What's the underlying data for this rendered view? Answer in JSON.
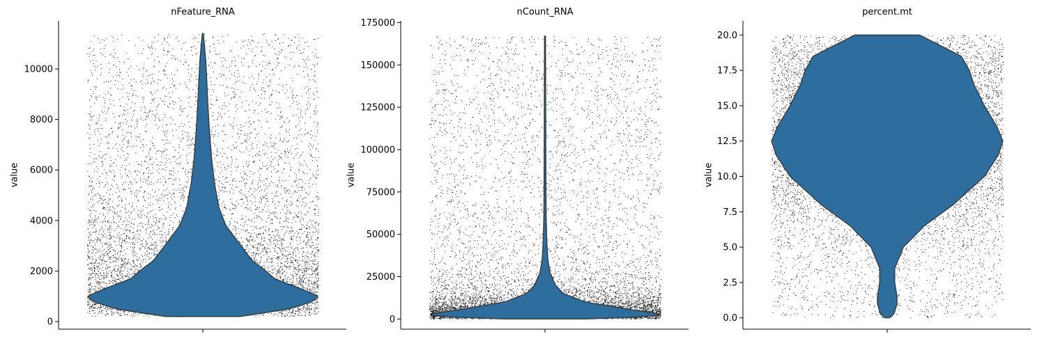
{
  "chart_data": [
    {
      "type": "violin",
      "title": "nFeature_RNA",
      "ylabel": "value",
      "ylim": [
        -300,
        11900
      ],
      "yticks": [
        0,
        2000,
        4000,
        6000,
        8000,
        10000
      ],
      "ytick_labels": [
        "0",
        "2000",
        "4000",
        "6000",
        "8000",
        "10000"
      ],
      "range": [
        200,
        11400
      ],
      "density": [
        [
          200,
          0.32
        ],
        [
          500,
          0.75
        ],
        [
          800,
          0.95
        ],
        [
          1000,
          1.0
        ],
        [
          1300,
          0.85
        ],
        [
          1700,
          0.62
        ],
        [
          2100,
          0.52
        ],
        [
          2400,
          0.43
        ],
        [
          3000,
          0.33
        ],
        [
          3800,
          0.2
        ],
        [
          4500,
          0.14
        ],
        [
          5500,
          0.1
        ],
        [
          6500,
          0.075
        ],
        [
          7500,
          0.058
        ],
        [
          8500,
          0.045
        ],
        [
          9500,
          0.035
        ],
        [
          10300,
          0.026
        ],
        [
          10900,
          0.015
        ],
        [
          11400,
          0.004
        ]
      ],
      "violin_color": "#2e6e9e",
      "point_color": "#000000"
    },
    {
      "type": "violin",
      "title": "nCount_RNA",
      "ylabel": "value",
      "ylim": [
        -6000,
        176000
      ],
      "yticks": [
        0,
        25000,
        50000,
        75000,
        100000,
        125000,
        150000,
        175000
      ],
      "ytick_labels": [
        "0",
        "25000",
        "50000",
        "75000",
        "100000",
        "125000",
        "150000",
        "175000"
      ],
      "range": [
        0,
        167000
      ],
      "density": [
        [
          0,
          0.35
        ],
        [
          1500,
          0.95
        ],
        [
          3000,
          1.0
        ],
        [
          6000,
          0.7
        ],
        [
          10000,
          0.35
        ],
        [
          15000,
          0.16
        ],
        [
          20000,
          0.09
        ],
        [
          27000,
          0.045
        ],
        [
          35000,
          0.025
        ],
        [
          45000,
          0.016
        ],
        [
          60000,
          0.01
        ],
        [
          80000,
          0.008
        ],
        [
          100000,
          0.007
        ],
        [
          125000,
          0.006
        ],
        [
          150000,
          0.005
        ],
        [
          167000,
          0.004
        ]
      ],
      "violin_color": "#2e6e9e",
      "point_color": "#000000"
    },
    {
      "type": "violin",
      "title": "percent.mt",
      "ylabel": "value",
      "ylim": [
        -0.8,
        21
      ],
      "yticks": [
        0.0,
        2.5,
        5.0,
        7.5,
        10.0,
        12.5,
        15.0,
        17.5,
        20.0
      ],
      "ytick_labels": [
        "0.0",
        "2.5",
        "5.0",
        "7.5",
        "10.0",
        "12.5",
        "15.0",
        "17.5",
        "20.0"
      ],
      "range": [
        0,
        20
      ],
      "density": [
        [
          0,
          0.02
        ],
        [
          0.3,
          0.06
        ],
        [
          1.0,
          0.085
        ],
        [
          1.5,
          0.085
        ],
        [
          2.5,
          0.065
        ],
        [
          3.5,
          0.065
        ],
        [
          5.0,
          0.14
        ],
        [
          6.5,
          0.32
        ],
        [
          8.0,
          0.57
        ],
        [
          10.0,
          0.84
        ],
        [
          11.5,
          0.96
        ],
        [
          12.5,
          1.0
        ],
        [
          13.5,
          0.95
        ],
        [
          15.0,
          0.84
        ],
        [
          16.5,
          0.75
        ],
        [
          17.5,
          0.71
        ],
        [
          18.5,
          0.64
        ],
        [
          19.3,
          0.45
        ],
        [
          20.0,
          0.28
        ]
      ],
      "violin_color": "#2e6e9e",
      "point_color": "#000000"
    }
  ]
}
